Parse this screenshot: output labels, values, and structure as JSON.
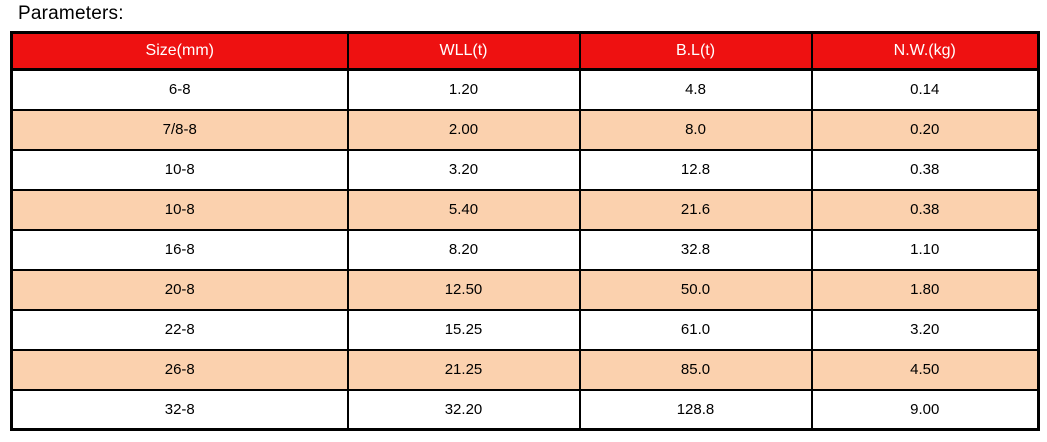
{
  "page": {
    "title": "Parameters:"
  },
  "table": {
    "columns": [
      "Size(mm)",
      "WLL(t)",
      "B.L(t)",
      "N.W.(kg)"
    ],
    "rows": [
      [
        "6-8",
        "1.20",
        "4.8",
        "0.14"
      ],
      [
        "7/8-8",
        "2.00",
        "8.0",
        "0.20"
      ],
      [
        "10-8",
        "3.20",
        "12.8",
        "0.38"
      ],
      [
        "10-8",
        "5.40",
        "21.6",
        "0.38"
      ],
      [
        "16-8",
        "8.20",
        "32.8",
        "1.10"
      ],
      [
        "20-8",
        "12.50",
        "50.0",
        "1.80"
      ],
      [
        "22-8",
        "15.25",
        "61.0",
        "3.20"
      ],
      [
        "26-8",
        "21.25",
        "85.0",
        "4.50"
      ],
      [
        "32-8",
        "32.20",
        "128.8",
        "9.00"
      ]
    ],
    "colors": {
      "header_bg": "#EE1111",
      "header_text": "#FFFFFF",
      "row_bg": "#FFFFFF",
      "row_alt_bg": "#FBD1AE",
      "border": "#000000",
      "text": "#000000"
    }
  }
}
